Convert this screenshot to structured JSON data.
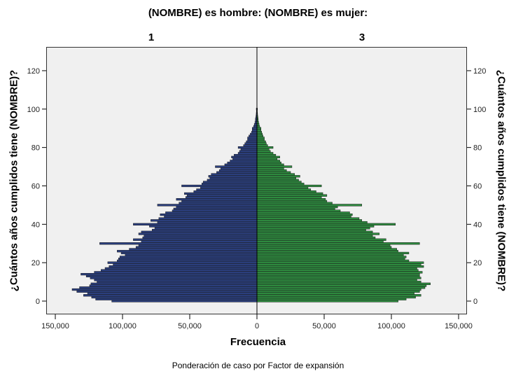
{
  "header": {
    "title": "(NOMBRE) es hombre: (NOMBRE) es mujer:",
    "panel_left_label": "1",
    "panel_right_label": "3"
  },
  "axes": {
    "y_left_title": "¿Cuántos años cumplidos tiene (NOMBRE)?",
    "y_right_title": "¿Cuántos años cumplidos tiene (NOMBRE)?",
    "x_title": "Frecuencia",
    "footnote": "Ponderación de caso por Factor de expansión"
  },
  "colors": {
    "male": "#2b3f7e",
    "female": "#2e8b3f",
    "bar_edge": "#1a1a1a",
    "plot_bg": "#f0f0f0"
  },
  "chart_data": {
    "type": "bar",
    "orientation": "horizontal-population-pyramid",
    "title": "(NOMBRE) es hombre: (NOMBRE) es mujer:",
    "xlabel": "Frecuencia",
    "ylabel": "¿Cuántos años cumplidos tiene (NOMBRE)?",
    "footnote": "Ponderación de caso por Factor de expansión",
    "xlim": [
      -155000,
      155000
    ],
    "ylim": [
      -7,
      132
    ],
    "x_ticks": [
      "150,000",
      "100,000",
      "50,000",
      "0",
      "50,000",
      "100,000",
      "150,000"
    ],
    "x_tick_values": [
      -150000,
      -100000,
      -50000,
      0,
      50000,
      100000,
      150000
    ],
    "y_ticks": [
      0,
      20,
      40,
      60,
      80,
      100,
      120
    ],
    "grid": false,
    "legend": "panel labels (1 = hombre, left; 3 = mujer, right)",
    "categories": [
      0,
      1,
      2,
      3,
      4,
      5,
      6,
      7,
      8,
      9,
      10,
      11,
      12,
      13,
      14,
      15,
      16,
      17,
      18,
      19,
      20,
      21,
      22,
      23,
      24,
      25,
      26,
      27,
      28,
      29,
      30,
      31,
      32,
      33,
      34,
      35,
      36,
      37,
      38,
      39,
      40,
      41,
      42,
      43,
      44,
      45,
      46,
      47,
      48,
      49,
      50,
      51,
      52,
      53,
      54,
      55,
      56,
      57,
      58,
      59,
      60,
      61,
      62,
      63,
      64,
      65,
      66,
      67,
      68,
      69,
      70,
      71,
      72,
      73,
      74,
      75,
      76,
      77,
      78,
      79,
      80,
      81,
      82,
      83,
      84,
      85,
      86,
      87,
      88,
      89,
      90,
      91,
      92,
      93,
      94,
      95,
      96,
      97,
      98,
      99,
      100
    ],
    "series": [
      {
        "name": "1 (hombre)",
        "values": [
          108000,
          120000,
          123000,
          129000,
          126000,
          134000,
          137500,
          132000,
          124500,
          123500,
          119000,
          121000,
          124000,
          127000,
          131000,
          121000,
          116000,
          113000,
          110000,
          107000,
          111000,
          104000,
          103000,
          102000,
          98000,
          101000,
          104000,
          95000,
          90000,
          88000,
          117000,
          86000,
          92000,
          85000,
          84000,
          88000,
          86000,
          78000,
          76000,
          80000,
          92000,
          74000,
          79000,
          73000,
          69000,
          72000,
          68000,
          63000,
          62000,
          60000,
          74000,
          58000,
          56000,
          60000,
          53000,
          52000,
          54000,
          47000,
          45000,
          42000,
          56000,
          41000,
          40000,
          37000,
          35000,
          36000,
          34000,
          30000,
          28000,
          27000,
          31000,
          24000,
          22000,
          20000,
          18000,
          19000,
          17000,
          14000,
          13000,
          12000,
          14000,
          10000,
          9000,
          8000,
          7000,
          7000,
          6000,
          5000,
          4000,
          3500,
          3500,
          2500,
          2000,
          1500,
          1200,
          1100,
          800,
          600,
          500,
          400,
          500
        ]
      },
      {
        "name": "3 (mujer)",
        "values": [
          105000,
          111000,
          118000,
          122000,
          117000,
          121000,
          122000,
          125000,
          126000,
          129000,
          122000,
          119000,
          122000,
          121000,
          121000,
          123000,
          120000,
          119000,
          124000,
          122000,
          124000,
          113000,
          110000,
          111000,
          109000,
          113000,
          105000,
          104000,
          100000,
          99000,
          121000,
          94000,
          96000,
          88000,
          86000,
          91000,
          86000,
          81000,
          84000,
          87000,
          103000,
          82000,
          78000,
          76000,
          70000,
          71000,
          69000,
          62000,
          58000,
          60000,
          78000,
          56000,
          52000,
          51000,
          48000,
          52000,
          49000,
          44000,
          40000,
          38000,
          48000,
          35000,
          33000,
          31000,
          29000,
          32000,
          28000,
          25000,
          22000,
          20000,
          26000,
          20000,
          18000,
          17000,
          15000,
          17000,
          14000,
          12000,
          10000,
          9000,
          12000,
          8000,
          7000,
          6500,
          5500,
          5500,
          4500,
          4000,
          3500,
          3000,
          3000,
          2000,
          1600,
          1300,
          1000,
          900,
          700,
          500,
          400,
          300,
          400
        ]
      }
    ]
  }
}
